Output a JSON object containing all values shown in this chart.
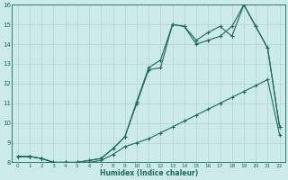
{
  "xlabel": "Humidex (Indice chaleur)",
  "x": [
    0,
    1,
    2,
    3,
    4,
    5,
    6,
    7,
    8,
    9,
    10,
    11,
    12,
    13,
    14,
    15,
    16,
    17,
    18,
    19,
    20,
    21,
    22
  ],
  "line1": [
    8.3,
    8.3,
    8.2,
    8.0,
    8.0,
    8.0,
    8.0,
    8.1,
    8.4,
    8.8,
    9.0,
    9.2,
    9.5,
    9.8,
    10.1,
    10.4,
    10.7,
    11.0,
    11.3,
    11.6,
    11.9,
    12.2,
    9.4
  ],
  "line2": [
    8.3,
    8.3,
    8.2,
    8.0,
    8.0,
    8.0,
    8.1,
    8.2,
    8.7,
    9.3,
    11.0,
    12.7,
    12.8,
    15.0,
    14.9,
    14.2,
    14.6,
    14.9,
    14.4,
    16.0,
    14.9,
    13.8,
    9.8
  ],
  "line3": [
    8.3,
    8.3,
    8.2,
    8.0,
    8.0,
    8.0,
    8.1,
    8.2,
    8.7,
    9.3,
    11.1,
    12.8,
    13.2,
    15.0,
    14.9,
    14.0,
    14.2,
    14.4,
    14.9,
    16.0,
    14.9,
    13.8,
    9.8
  ],
  "bg_color": "#cceae7",
  "grid_color": "#b8d8d4",
  "line_color": "#1a6b5a",
  "ylim": [
    8,
    16
  ],
  "xlim": [
    -0.5,
    22.5
  ],
  "yticks": [
    8,
    9,
    10,
    11,
    12,
    13,
    14,
    15,
    16
  ],
  "xticks": [
    0,
    1,
    2,
    3,
    4,
    5,
    6,
    7,
    8,
    9,
    10,
    11,
    12,
    13,
    14,
    15,
    16,
    17,
    18,
    19,
    20,
    21,
    22
  ]
}
